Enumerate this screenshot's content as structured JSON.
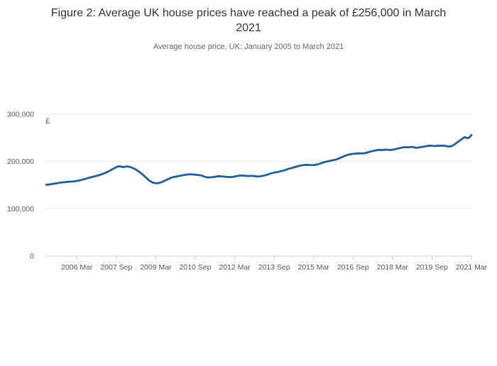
{
  "header": {
    "title": "Figure 2: Average UK house prices have reached a peak of £256,000 in March 2021",
    "subtitle": "Average house price, UK: January 2005 to March 2021"
  },
  "chart_data": {
    "type": "line",
    "title": "Figure 2: Average UK house prices have reached a peak of £256,000 in March 2021",
    "subtitle": "Average house price, UK: January 2005 to March 2021",
    "x_start": "2005-01",
    "x_end": "2021-03",
    "x_frequency": "monthly",
    "legend": "none",
    "grid": "horizontal-only",
    "series": [
      {
        "name": "Average UK house price (£)",
        "values": [
          150600,
          151200,
          151800,
          152700,
          153400,
          154000,
          154800,
          155500,
          156100,
          156500,
          157000,
          157400,
          157700,
          158100,
          158800,
          159700,
          160900,
          162100,
          163400,
          164800,
          166100,
          167300,
          168500,
          169600,
          170800,
          172300,
          174100,
          176000,
          178100,
          180400,
          182900,
          185600,
          188100,
          189800,
          189300,
          188300,
          188900,
          189600,
          188700,
          187200,
          185200,
          182700,
          179700,
          176300,
          172500,
          168300,
          163900,
          159900,
          156900,
          154800,
          154000,
          154400,
          155400,
          157000,
          159100,
          161300,
          163500,
          165500,
          167000,
          167900,
          168700,
          169600,
          170500,
          171500,
          172200,
          172700,
          173000,
          172600,
          172100,
          171600,
          171000,
          170300,
          168200,
          166800,
          166200,
          166500,
          167000,
          167600,
          168400,
          168900,
          168500,
          168000,
          167600,
          167200,
          167000,
          167400,
          168200,
          169200,
          169900,
          170400,
          170100,
          169600,
          169200,
          169500,
          169600,
          169000,
          168400,
          168300,
          168900,
          169800,
          170900,
          172300,
          173900,
          175400,
          176500,
          177200,
          178200,
          179400,
          180400,
          181900,
          183400,
          184900,
          186100,
          187500,
          189000,
          190400,
          191400,
          192100,
          192600,
          193000,
          192600,
          192200,
          192500,
          193100,
          194100,
          195600,
          197200,
          198700,
          199800,
          200900,
          201900,
          202900,
          203900,
          205400,
          207300,
          209300,
          211200,
          213100,
          214500,
          215500,
          216100,
          216600,
          217000,
          217400,
          217000,
          217400,
          218200,
          219700,
          220900,
          222100,
          223200,
          224100,
          224600,
          224200,
          224600,
          225100,
          224700,
          224300,
          224800,
          225800,
          226900,
          228000,
          229100,
          229900,
          230300,
          229900,
          230500,
          230900,
          229700,
          229100,
          229600,
          230500,
          231100,
          232000,
          233000,
          233600,
          233100,
          232600,
          233000,
          233500,
          233200,
          233600,
          233100,
          232100,
          231600,
          232700,
          235200,
          238700,
          242100,
          245200,
          248600,
          251500,
          249300,
          250300,
          256000
        ]
      }
    ],
    "x_ticks": [
      {
        "index": 14,
        "label": "2006 Mar"
      },
      {
        "index": 32,
        "label": "2007 Sep"
      },
      {
        "index": 50,
        "label": "2009 Mar"
      },
      {
        "index": 68,
        "label": "2010 Sep"
      },
      {
        "index": 86,
        "label": "2012 Mar"
      },
      {
        "index": 104,
        "label": "2013 Sep"
      },
      {
        "index": 122,
        "label": "2015 Mar"
      },
      {
        "index": 140,
        "label": "2016 Sep"
      },
      {
        "index": 158,
        "label": "2018 Mar"
      },
      {
        "index": 176,
        "label": "2019 Sep"
      },
      {
        "index": 194,
        "label": "2021 Mar"
      }
    ],
    "y_axis": {
      "unit_label": "£",
      "range": [
        0,
        310000
      ],
      "ticks": [
        {
          "value": 0,
          "label": "0"
        },
        {
          "value": 100000,
          "label": "100,000"
        },
        {
          "value": 200000,
          "label": "200,000"
        },
        {
          "value": 300000,
          "label": "300,000"
        }
      ]
    },
    "colors": {
      "line": "#206095",
      "grid": "#e6e6e6",
      "axis": "#c4d1dc",
      "tick_label": "#595959",
      "title": "#333333",
      "subtitle": "#666666",
      "background": "#ffffff"
    }
  }
}
